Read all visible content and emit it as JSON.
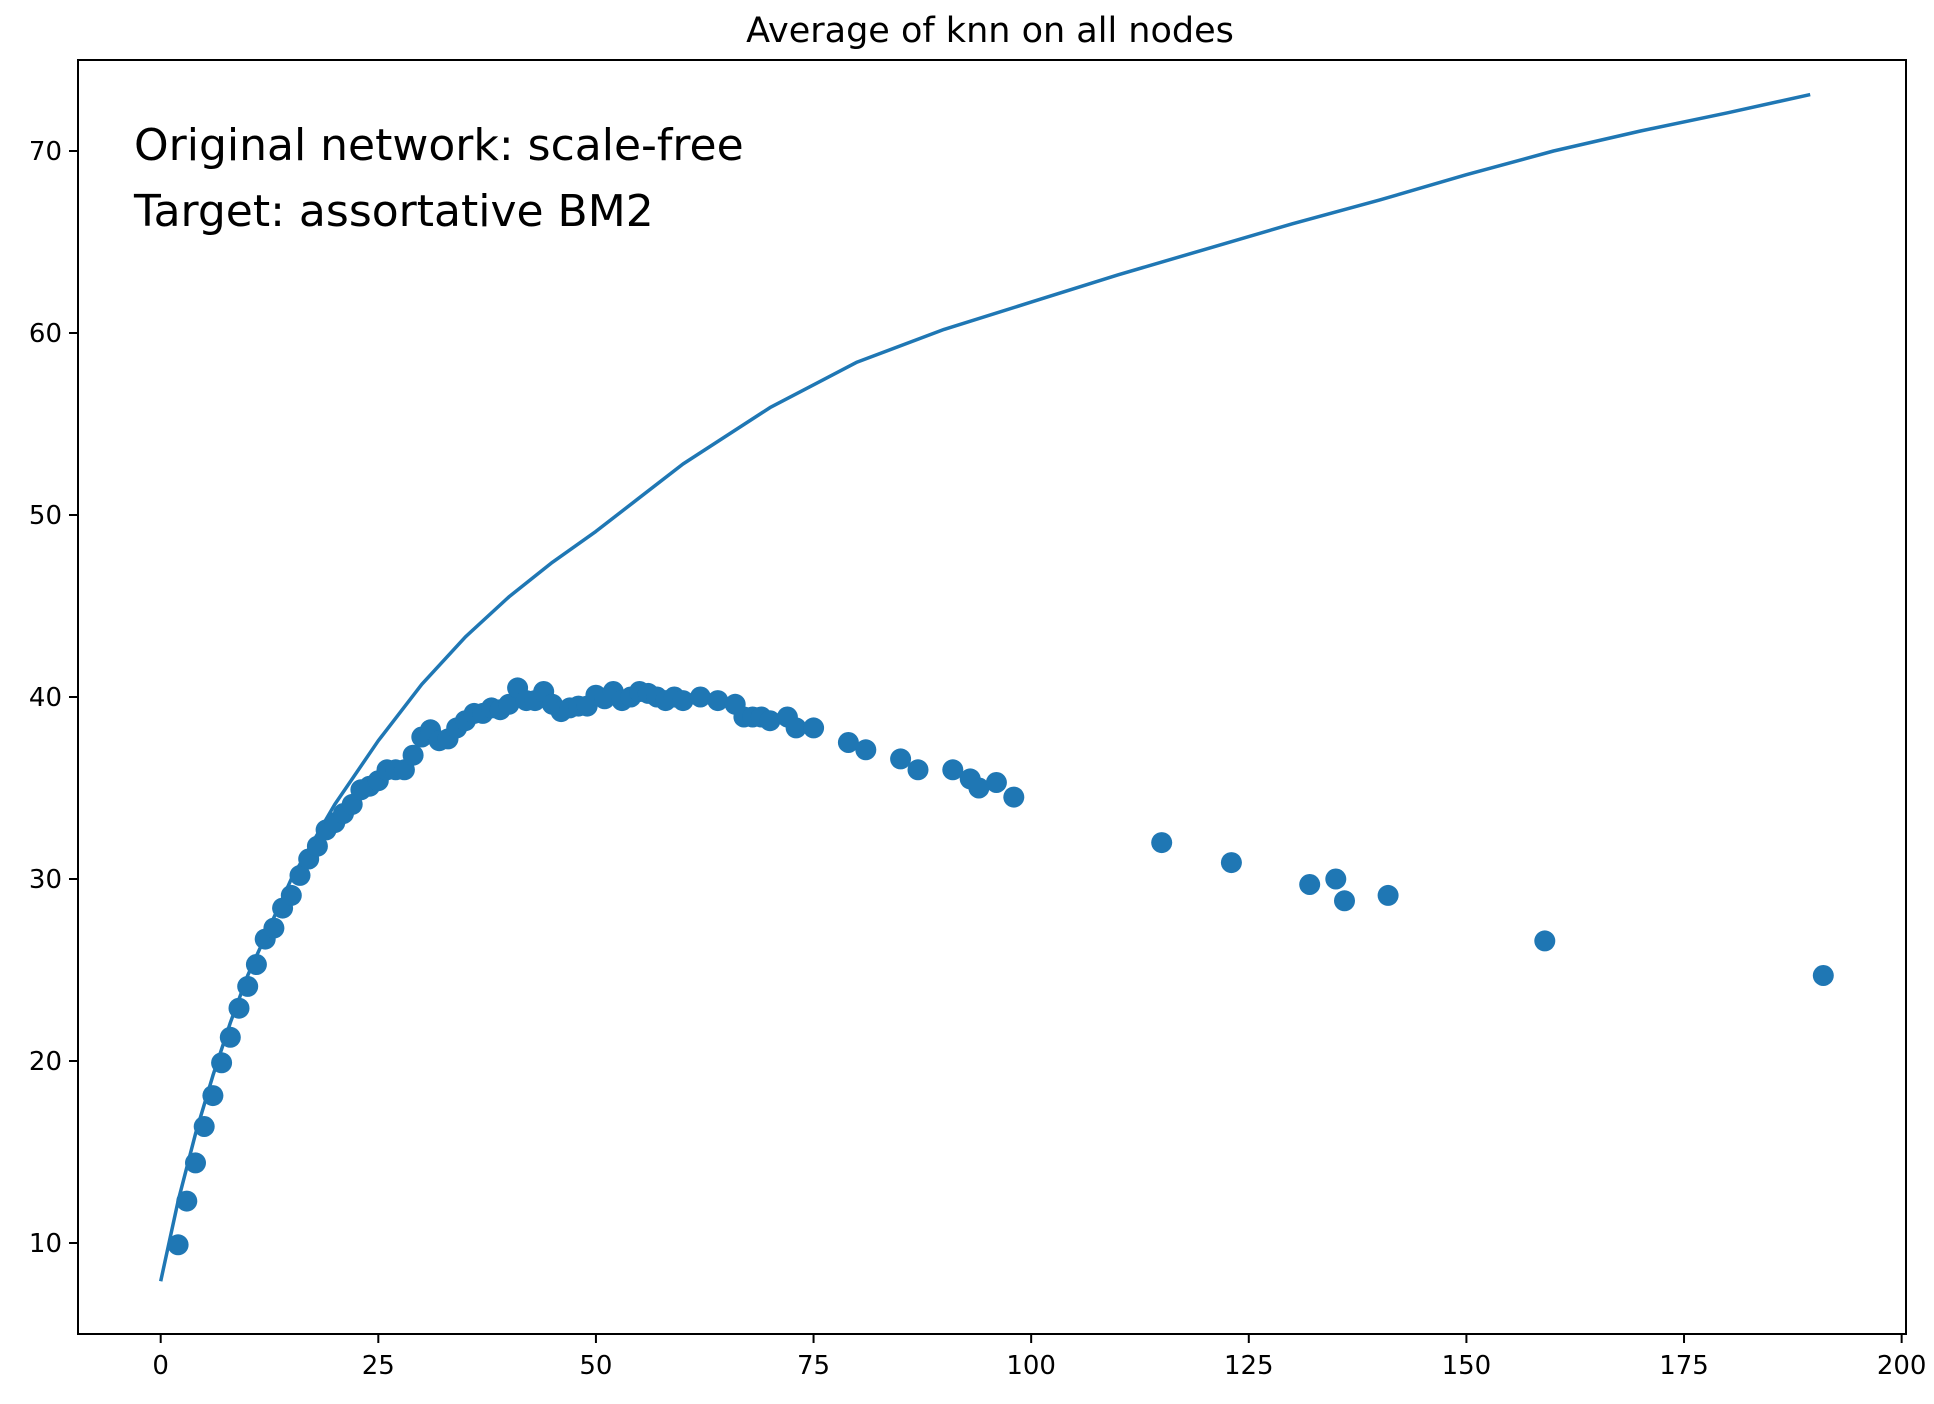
{
  "chart_data": {
    "type": "scatter",
    "title": "Average of knn on all nodes",
    "xlabel": "",
    "ylabel": "",
    "xlim": [
      -9.5,
      200.5
    ],
    "ylim": [
      5,
      75
    ],
    "grid": false,
    "legend": "none",
    "colors": {
      "series": "#1f77b4",
      "axes": "#000000"
    },
    "x_ticks": [
      0,
      25,
      50,
      75,
      100,
      125,
      150,
      175,
      200
    ],
    "y_ticks": [
      10,
      20,
      30,
      40,
      50,
      60,
      70
    ],
    "x_tick_labels": [
      "0",
      "25",
      "50",
      "75",
      "100",
      "125",
      "150",
      "175",
      "200"
    ],
    "y_tick_labels": [
      "10",
      "20",
      "30",
      "40",
      "50",
      "60",
      "70"
    ],
    "annotations": [
      "Original network: scale-free",
      "Target: assortative BM2"
    ],
    "series": [
      {
        "type": "scatter",
        "points": [
          [
            2,
            9.9
          ],
          [
            3,
            12.3
          ],
          [
            4,
            14.4
          ],
          [
            5,
            16.4
          ],
          [
            6,
            18.1
          ],
          [
            7,
            19.9
          ],
          [
            8,
            21.3
          ],
          [
            9,
            22.9
          ],
          [
            10,
            24.1
          ],
          [
            11,
            25.3
          ],
          [
            12,
            26.7
          ],
          [
            13,
            27.3
          ],
          [
            14,
            28.4
          ],
          [
            15,
            29.1
          ],
          [
            16,
            30.2
          ],
          [
            17,
            31.1
          ],
          [
            18,
            31.8
          ],
          [
            19,
            32.7
          ],
          [
            20,
            33.1
          ],
          [
            21,
            33.6
          ],
          [
            22,
            34.1
          ],
          [
            23,
            34.9
          ],
          [
            24,
            35.1
          ],
          [
            25,
            35.4
          ],
          [
            26,
            36.0
          ],
          [
            27,
            36.0
          ],
          [
            28,
            36.0
          ],
          [
            29,
            36.8
          ],
          [
            30,
            37.8
          ],
          [
            31,
            38.2
          ],
          [
            32,
            37.6
          ],
          [
            33,
            37.7
          ],
          [
            34,
            38.3
          ],
          [
            35,
            38.7
          ],
          [
            36,
            39.1
          ],
          [
            37,
            39.1
          ],
          [
            38,
            39.4
          ],
          [
            39,
            39.3
          ],
          [
            40,
            39.6
          ],
          [
            41,
            40.5
          ],
          [
            42,
            39.8
          ],
          [
            43,
            39.8
          ],
          [
            44,
            40.3
          ],
          [
            45,
            39.6
          ],
          [
            46,
            39.2
          ],
          [
            47,
            39.4
          ],
          [
            48,
            39.5
          ],
          [
            49,
            39.5
          ],
          [
            50,
            40.1
          ],
          [
            51,
            39.9
          ],
          [
            52,
            40.3
          ],
          [
            53,
            39.8
          ],
          [
            54,
            40.0
          ],
          [
            55,
            40.3
          ],
          [
            56,
            40.2
          ],
          [
            57,
            40.0
          ],
          [
            58,
            39.8
          ],
          [
            59,
            40.0
          ],
          [
            60,
            39.8
          ],
          [
            62,
            40.0
          ],
          [
            64,
            39.8
          ],
          [
            66,
            39.6
          ],
          [
            67,
            38.9
          ],
          [
            68,
            38.9
          ],
          [
            69,
            38.9
          ],
          [
            70,
            38.7
          ],
          [
            72,
            38.9
          ],
          [
            73,
            38.3
          ],
          [
            75,
            38.3
          ],
          [
            79,
            37.5
          ],
          [
            81,
            37.1
          ],
          [
            85,
            36.6
          ],
          [
            87,
            36.0
          ],
          [
            91,
            36.0
          ],
          [
            93,
            35.5
          ],
          [
            94,
            35.0
          ],
          [
            96,
            35.3
          ],
          [
            98,
            34.5
          ],
          [
            115,
            32.0
          ],
          [
            123,
            30.9
          ],
          [
            132,
            29.7
          ],
          [
            135,
            30.0
          ],
          [
            136,
            28.8
          ],
          [
            141,
            29.1
          ],
          [
            159,
            26.6
          ],
          [
            191,
            24.7
          ]
        ]
      },
      {
        "type": "line",
        "x": [
          0,
          2,
          4,
          6,
          8,
          10,
          15,
          20,
          25,
          30,
          35,
          40,
          45,
          50,
          60,
          70,
          80,
          90,
          100,
          110,
          120,
          130,
          140,
          150,
          160,
          170,
          180,
          189.5
        ],
        "y": [
          7.9,
          12.3,
          16.0,
          19.2,
          22.1,
          24.7,
          30.0,
          34.1,
          37.6,
          40.7,
          43.3,
          45.5,
          47.4,
          49.1,
          52.8,
          55.9,
          58.4,
          60.2,
          61.7,
          63.2,
          64.6,
          66.0,
          67.3,
          68.7,
          70.0,
          71.1,
          72.1,
          73.1
        ]
      }
    ]
  }
}
